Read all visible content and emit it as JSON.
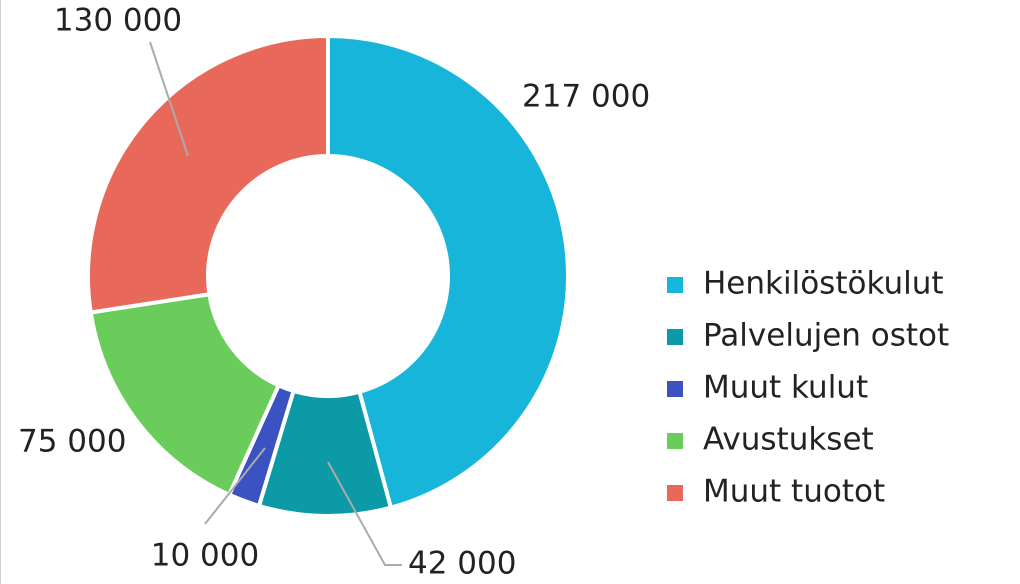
{
  "chart_data": {
    "type": "donut",
    "categories": [
      "Henkilöstökulut",
      "Palvelujen ostot",
      "Muut kulut",
      "Avustukset",
      "Muut tuotot"
    ],
    "values": [
      217000,
      42000,
      10000,
      75000,
      130000
    ],
    "value_labels": [
      "217 000",
      "42 000",
      "10 000",
      "75 000",
      "130 000"
    ],
    "colors": [
      "#17b5d9",
      "#0b9aa6",
      "#3b52c2",
      "#6acd5b",
      "#e8695a"
    ],
    "legend": "right"
  }
}
